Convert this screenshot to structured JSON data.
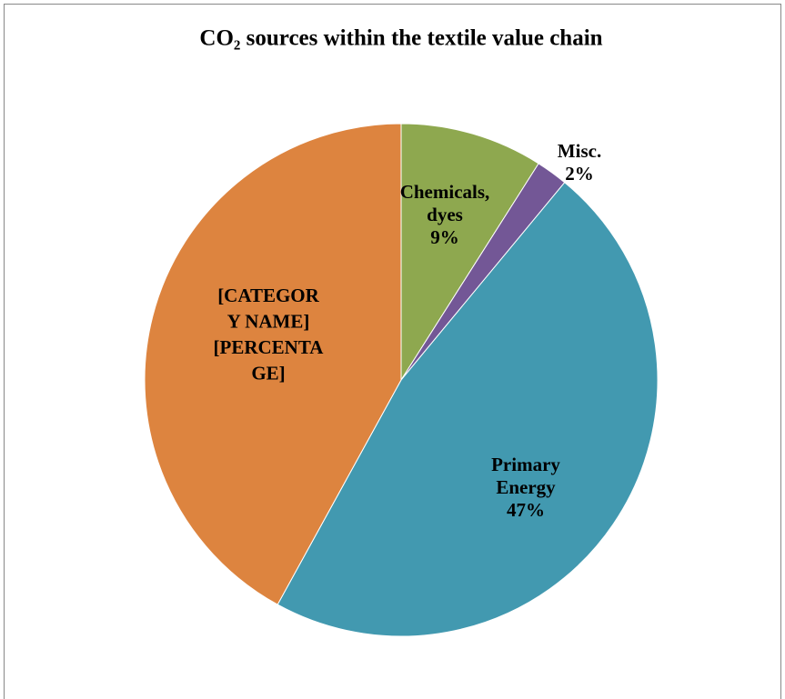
{
  "chart_data": {
    "type": "pie",
    "title": "CO₂ sources within the textile value chain",
    "categories": [
      "Chemicals, dyes",
      "Misc.",
      "Primary Energy",
      null
    ],
    "values": [
      9,
      2,
      47,
      42
    ],
    "value_labels": [
      "9%",
      "2%",
      "47%",
      null
    ],
    "colors": [
      "#8ea84f",
      "#735796",
      "#4299b0",
      "#dd843f"
    ],
    "annotations": [
      "[CATEGOR",
      "Y NAME]",
      "[PERCENTA",
      "GE]"
    ]
  }
}
